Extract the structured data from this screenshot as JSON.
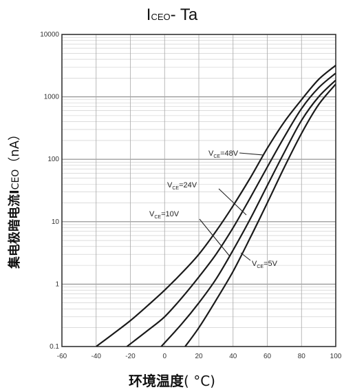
{
  "chart_data": {
    "type": "line",
    "title": {
      "main": "I",
      "sub": "CEO",
      "tail": "- Ta"
    },
    "ylabel": {
      "main": "集电极暗电流I",
      "sub": "CEO",
      "unit": "（nA）"
    },
    "xlabel": {
      "cn": "环境温度",
      "unit": "( °C)"
    },
    "x_scale": "linear",
    "y_scale": "log",
    "xlim": [
      -60,
      100
    ],
    "ylim": [
      0.1,
      10000
    ],
    "x_ticks": [
      "-60",
      "-40",
      "-20",
      "0",
      "20",
      "40",
      "60",
      "80",
      "100"
    ],
    "y_ticks": [
      "0.1",
      "1",
      "10",
      "100",
      "1000",
      "10000"
    ],
    "grid": true,
    "series": [
      {
        "name": "V_CE=48V",
        "label_main": "V",
        "label_sub": "CE",
        "label_val": "=48V",
        "x": [
          -40,
          -30,
          -20,
          -10,
          0,
          10,
          20,
          30,
          40,
          50,
          60,
          70,
          80,
          90,
          100
        ],
        "y": [
          0.1,
          0.16,
          0.26,
          0.45,
          0.8,
          1.5,
          3.0,
          7.0,
          18,
          50,
          150,
          400,
          900,
          1900,
          3200
        ]
      },
      {
        "name": "V_CE=24V",
        "label_main": "V",
        "label_sub": "CE",
        "label_val": "=24V",
        "x": [
          -22,
          -10,
          0,
          10,
          20,
          30,
          40,
          50,
          60,
          70,
          80,
          90,
          100
        ],
        "y": [
          0.1,
          0.18,
          0.3,
          0.6,
          1.3,
          3.0,
          8.0,
          24,
          75,
          230,
          650,
          1400,
          2400
        ]
      },
      {
        "name": "V_CE=10V",
        "label_main": "V",
        "label_sub": "CE",
        "label_val": "=10V",
        "x": [
          -2,
          10,
          20,
          30,
          40,
          50,
          60,
          70,
          80,
          90,
          100
        ],
        "y": [
          0.1,
          0.23,
          0.5,
          1.2,
          3.5,
          11,
          38,
          130,
          420,
          1000,
          1850
        ]
      },
      {
        "name": "V_CE=5V",
        "label_main": "V",
        "label_sub": "CE",
        "label_val": "=5V",
        "x": [
          12,
          20,
          30,
          40,
          50,
          60,
          70,
          80,
          90,
          100
        ],
        "y": [
          0.1,
          0.2,
          0.55,
          1.6,
          5.5,
          20,
          75,
          260,
          750,
          1600
        ]
      }
    ]
  }
}
